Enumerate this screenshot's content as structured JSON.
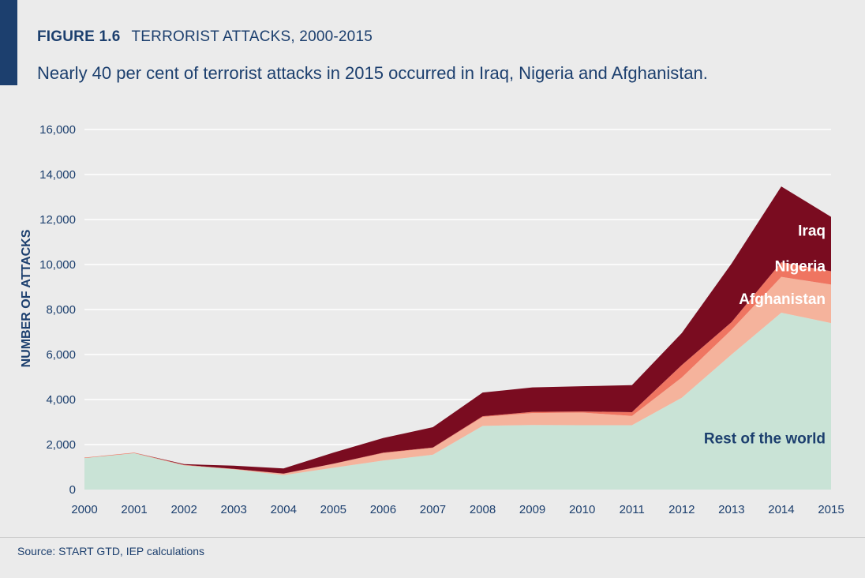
{
  "header": {
    "figure_number": "FIGURE 1.6",
    "figure_title": "TERRORIST ATTACKS, 2000-2015",
    "subtitle": "Nearly 40 per cent of terrorist attacks in 2015 occurred in Iraq, Nigeria and Afghanistan."
  },
  "footer": {
    "source": "Source: START GTD, IEP calculations"
  },
  "colors": {
    "accent": "#1c3f6e",
    "rest_of_world": "#c9e3d6",
    "afghanistan": "#f5b39c",
    "nigeria": "#ef7561",
    "iraq": "#7a0c20",
    "gridline": "#ffffff"
  },
  "chart_data": {
    "type": "area",
    "stacked": true,
    "title": "TERRORIST ATTACKS, 2000-2015",
    "xlabel": "",
    "ylabel": "NUMBER OF ATTACKS",
    "ylim": [
      0,
      16000
    ],
    "yticks": [
      0,
      2000,
      4000,
      6000,
      8000,
      10000,
      12000,
      14000,
      16000
    ],
    "ytick_labels": [
      "0",
      "2,000",
      "4,000",
      "6,000",
      "8,000",
      "10,000",
      "12,000",
      "14,000",
      "16,000"
    ],
    "grid": true,
    "x": [
      "2000",
      "2001",
      "2002",
      "2003",
      "2004",
      "2005",
      "2006",
      "2007",
      "2008",
      "2009",
      "2010",
      "2011",
      "2012",
      "2013",
      "2014",
      "2015"
    ],
    "series": [
      {
        "name": "Rest of the world",
        "color_key": "rest_of_world",
        "label_text_color": "#1c3f6e",
        "values": [
          1400,
          1620,
          1080,
          900,
          640,
          970,
          1290,
          1550,
          2830,
          2870,
          2860,
          2860,
          4080,
          6000,
          7860,
          7400
        ]
      },
      {
        "name": "Afghanistan",
        "color_key": "afghanistan",
        "label_text_color": "#ffffff",
        "values": [
          0,
          0,
          0,
          10,
          60,
          170,
          330,
          300,
          400,
          530,
          560,
          410,
          900,
          1100,
          1590,
          1710
        ]
      },
      {
        "name": "Nigeria",
        "color_key": "nigeria",
        "label_text_color": "#ffffff",
        "values": [
          20,
          20,
          20,
          10,
          10,
          10,
          20,
          20,
          30,
          50,
          50,
          170,
          550,
          340,
          650,
          590
        ]
      },
      {
        "name": "Iraq",
        "color_key": "iraq",
        "label_text_color": "#ffffff",
        "values": [
          0,
          0,
          30,
          140,
          230,
          490,
          650,
          900,
          1050,
          1090,
          1120,
          1200,
          1420,
          2600,
          3370,
          2420
        ]
      }
    ]
  }
}
